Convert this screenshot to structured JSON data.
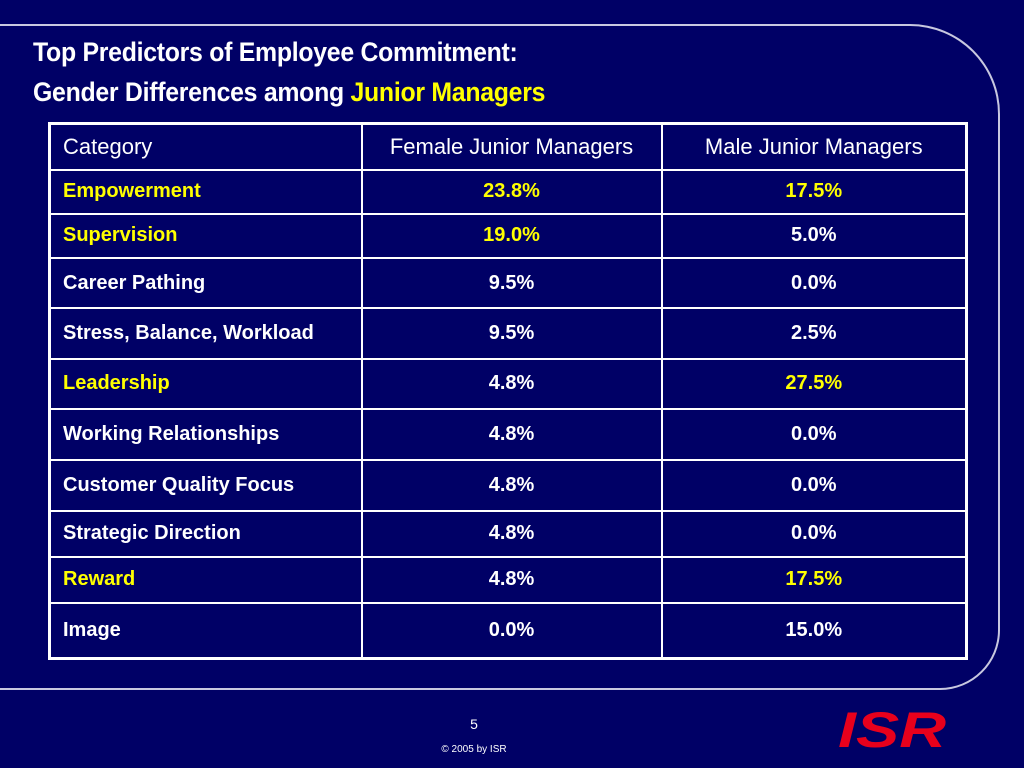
{
  "title": {
    "line1": "Top Predictors of Employee Commitment:",
    "line2_prefix": "Gender Differences among",
    "line2_highlight": "Junior Managers"
  },
  "table": {
    "headers": [
      "Category",
      "Female Junior Managers",
      "Male Junior Managers"
    ],
    "rows": [
      {
        "category": "Empowerment",
        "female": "23.8%",
        "male": "17.5%"
      },
      {
        "category": "Supervision",
        "female": "19.0%",
        "male": "5.0%"
      },
      {
        "category": "Career Pathing",
        "female": "9.5%",
        "male": "0.0%"
      },
      {
        "category": "Stress, Balance, Workload",
        "female": "9.5%",
        "male": "2.5%"
      },
      {
        "category": "Leadership",
        "female": "4.8%",
        "male": "27.5%"
      },
      {
        "category": "Working Relationships",
        "female": "4.8%",
        "male": "0.0%"
      },
      {
        "category": "Customer Quality Focus",
        "female": "4.8%",
        "male": "0.0%"
      },
      {
        "category": "Strategic Direction",
        "female": "4.8%",
        "male": "0.0%"
      },
      {
        "category": "Reward",
        "female": "4.8%",
        "male": "17.5%"
      },
      {
        "category": "Image",
        "female": "0.0%",
        "male": "15.0%"
      }
    ]
  },
  "footer": {
    "page_number": "5",
    "copyright": "© 2005 by ISR"
  },
  "logo": {
    "text": "ISR"
  },
  "colors": {
    "background": "#000066",
    "highlight": "#ffff00",
    "text": "#ffffff",
    "logo": "#e8001c"
  }
}
